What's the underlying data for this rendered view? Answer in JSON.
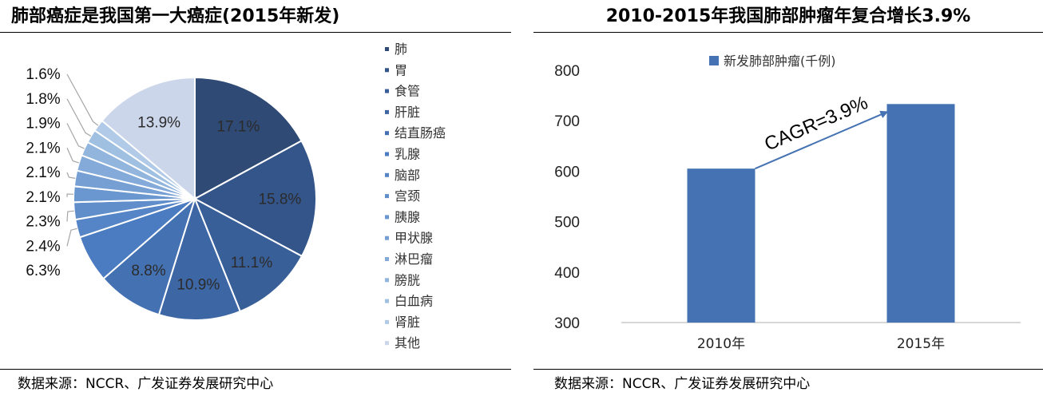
{
  "chart_data": [
    {
      "type": "pie",
      "title": "肺部癌症是我国第一大癌症(2015年新发)",
      "categories": [
        "肺",
        "胃",
        "食管",
        "肝脏",
        "结直肠癌",
        "乳腺",
        "脑部",
        "宫颈",
        "胰腺",
        "甲状腺",
        "淋巴瘤",
        "膀胱",
        "白血病",
        "肾脏",
        "其他"
      ],
      "values": [
        17.1,
        15.8,
        11.1,
        10.9,
        8.8,
        6.3,
        2.4,
        2.3,
        2.1,
        2.1,
        2.1,
        1.9,
        1.8,
        1.6,
        13.9
      ],
      "value_labels": [
        "17.1%",
        "15.8%",
        "11.1%",
        "10.9%",
        "8.8%",
        "6.3%",
        "2.4%",
        "2.3%",
        "2.1%",
        "2.1%",
        "2.1%",
        "1.9%",
        "1.8%",
        "1.6%",
        "13.9%"
      ],
      "colors": [
        "#2e4a75",
        "#34558a",
        "#395f99",
        "#3d66a4",
        "#4471b2",
        "#4b7bc0",
        "#5585c6",
        "#5f8ecb",
        "#6a97cf",
        "#76a0d4",
        "#83aad9",
        "#91b5dd",
        "#a0c0e2",
        "#b0cae7",
        "#ccd6ea"
      ],
      "legend_position": "right",
      "source": "数据来源：NCCR、广发证券发展研究中心"
    },
    {
      "type": "bar",
      "title": "2010-2015年我国肺部肿瘤年复合增长3.9%",
      "categories": [
        "2010年",
        "2015年"
      ],
      "series": [
        {
          "name": "新发肺部肿瘤(千例)",
          "values": [
            605,
            733
          ],
          "color": "#4472b3"
        }
      ],
      "ylim": [
        300,
        800
      ],
      "yticks": [
        300,
        400,
        500,
        600,
        700,
        800
      ],
      "annotation": "CAGR=3.9%",
      "legend_position": "top",
      "grid": false,
      "source": "数据来源：NCCR、广发证券发展研究中心"
    }
  ]
}
